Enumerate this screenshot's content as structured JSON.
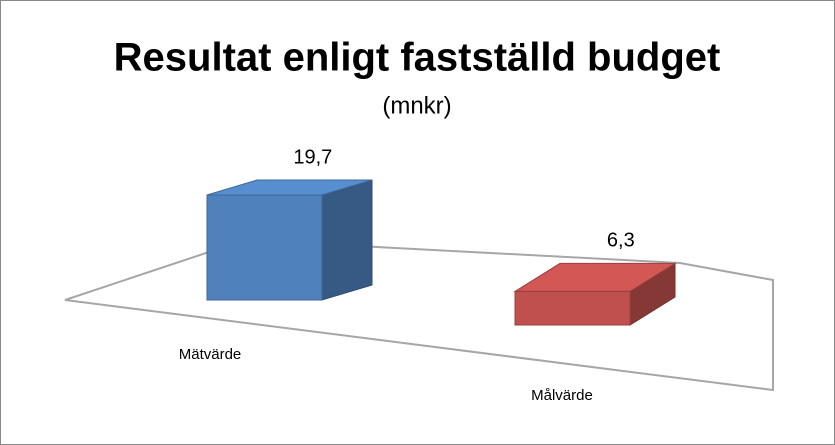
{
  "chart_data": {
    "type": "bar3d",
    "title": "Resultat enligt fastställd budget",
    "subtitle": "(mnkr)",
    "categories": [
      "Mätvärde",
      "Målvärde"
    ],
    "values": [
      19.7,
      6.3
    ],
    "value_labels": [
      "19,7",
      "6,3"
    ],
    "colors": [
      "#4f81bd",
      "#c0504d"
    ]
  }
}
